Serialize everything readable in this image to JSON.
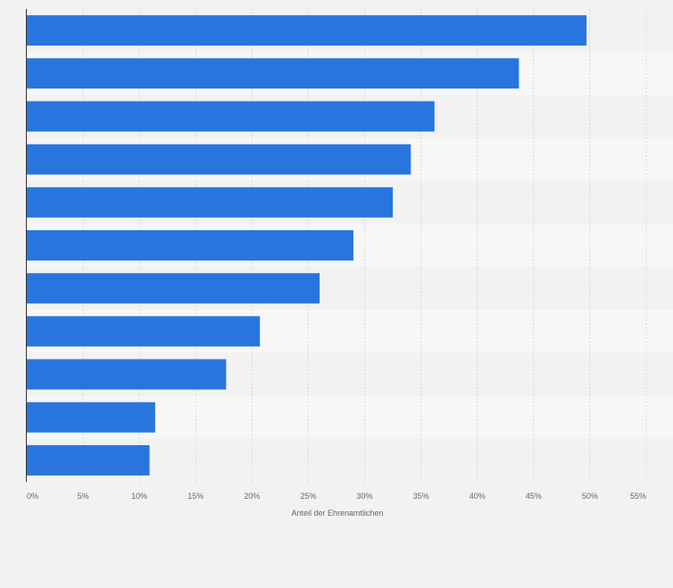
{
  "chart_data": {
    "type": "bar",
    "orientation": "horizontal",
    "categories": [
      "",
      "",
      "",
      "",
      "",
      "",
      "",
      "",
      "",
      "",
      ""
    ],
    "values": [
      49.7,
      43.7,
      36.2,
      34.1,
      32.5,
      29.0,
      26.0,
      20.7,
      17.7,
      11.4,
      10.9
    ],
    "xlabel": "Anteil der Ehrenamtlichen",
    "ylabel": "",
    "xlim": [
      0,
      55
    ],
    "x_ticks": [
      0,
      5,
      10,
      15,
      20,
      25,
      30,
      35,
      40,
      45,
      50,
      55
    ],
    "tick_suffix": "%",
    "grid": true,
    "legend": "none"
  },
  "colors": {
    "bar": "#2876dd",
    "background": "#f2f2f2",
    "band_light": "#f7f7f7",
    "band_dark": "#f2f2f2",
    "grid": "#d8d8d8",
    "axis": "#333333",
    "text": "#666666"
  }
}
